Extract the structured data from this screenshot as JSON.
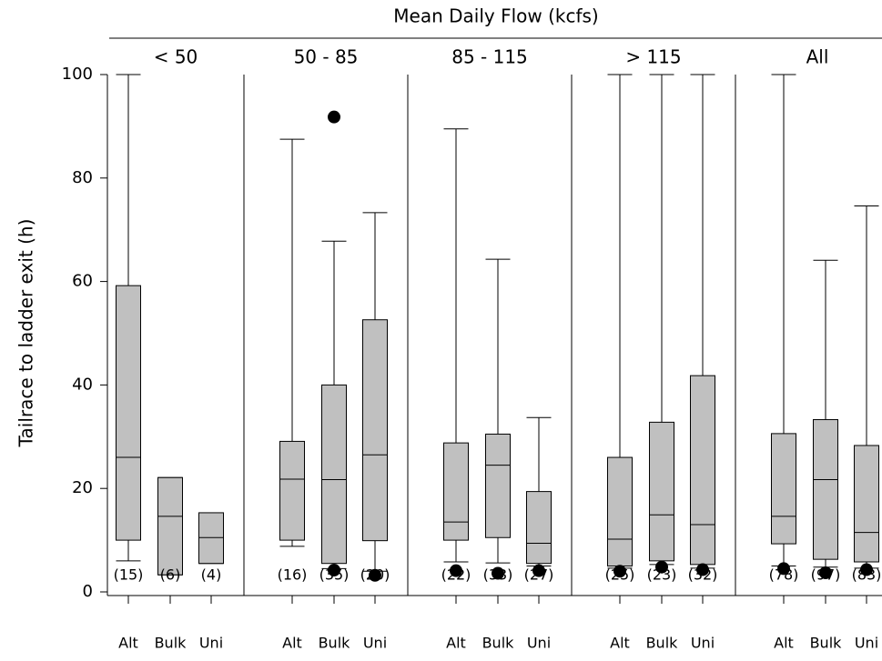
{
  "chart_data": {
    "type": "box",
    "title": "Mean Daily Flow (kcfs)",
    "y_label": "Tailrace to ladder exit (h)",
    "ylim": [
      0,
      100
    ],
    "yticks": [
      0,
      20,
      40,
      60,
      80,
      100
    ],
    "color": "#c0c0c0",
    "panels": [
      {
        "label": "< 50",
        "categories": [
          "Alt",
          "Bulk",
          "Uni"
        ],
        "boxes": [
          {
            "whislo": 6,
            "q1": 10,
            "med": 26,
            "q3": 59.2,
            "whishi": 100,
            "fliers": [],
            "count_label": "(15)"
          },
          {
            "whislo": 3.3,
            "q1": 3.3,
            "med": 14.6,
            "q3": 22.1,
            "whishi": 22.1,
            "fliers": [],
            "count_label": "(6)"
          },
          {
            "whislo": 5.5,
            "q1": 5.5,
            "med": 10.5,
            "q3": 15.3,
            "whishi": 15.3,
            "fliers": [],
            "count_label": "(4)"
          }
        ]
      },
      {
        "label": "50 - 85",
        "categories": [
          "Alt",
          "Bulk",
          "Uni"
        ],
        "boxes": [
          {
            "whislo": 8.8,
            "q1": 10,
            "med": 21.8,
            "q3": 29.1,
            "whishi": 87.5,
            "fliers": [],
            "count_label": "(16)"
          },
          {
            "whislo": 4.5,
            "q1": 5.5,
            "med": 21.7,
            "q3": 40,
            "whishi": 67.8,
            "fliers": [
              91.8,
              4.2
            ],
            "count_label": "(35)"
          },
          {
            "whislo": 4,
            "q1": 9.9,
            "med": 26.5,
            "q3": 52.6,
            "whishi": 73.3,
            "fliers": [
              3.2
            ],
            "count_label": "(20)"
          }
        ]
      },
      {
        "label": "85 - 115",
        "categories": [
          "Alt",
          "Bulk",
          "Uni"
        ],
        "boxes": [
          {
            "whislo": 5.8,
            "q1": 10,
            "med": 13.5,
            "q3": 28.8,
            "whishi": 89.5,
            "fliers": [
              4.1
            ],
            "count_label": "(22)"
          },
          {
            "whislo": 5.6,
            "q1": 10.5,
            "med": 24.5,
            "q3": 30.5,
            "whishi": 64.3,
            "fliers": [
              3.6
            ],
            "count_label": "(33)"
          },
          {
            "whislo": 5,
            "q1": 5.5,
            "med": 9.4,
            "q3": 19.4,
            "whishi": 33.7,
            "fliers": [
              4.1
            ],
            "count_label": "(27)"
          }
        ]
      },
      {
        "label": "> 115",
        "categories": [
          "Alt",
          "Bulk",
          "Uni"
        ],
        "boxes": [
          {
            "whislo": 4.6,
            "q1": 5,
            "med": 10.2,
            "q3": 26,
            "whishi": 100,
            "fliers": [
              4
            ],
            "count_label": "(25)"
          },
          {
            "whislo": 5.3,
            "q1": 6,
            "med": 14.9,
            "q3": 32.8,
            "whishi": 100,
            "fliers": [
              4.8
            ],
            "count_label": "(23)"
          },
          {
            "whislo": 4.6,
            "q1": 5.3,
            "med": 13,
            "q3": 41.8,
            "whishi": 100,
            "fliers": [
              4.3
            ],
            "count_label": "(32)"
          }
        ]
      },
      {
        "label": "All",
        "categories": [
          "Alt",
          "Bulk",
          "Uni"
        ],
        "boxes": [
          {
            "whislo": 5,
            "q1": 9.3,
            "med": 14.6,
            "q3": 30.6,
            "whishi": 100,
            "fliers": [
              4.5
            ],
            "count_label": "(78)"
          },
          {
            "whislo": 4.8,
            "q1": 6.3,
            "med": 21.7,
            "q3": 33.3,
            "whishi": 64.1,
            "fliers": [
              3.7
            ],
            "count_label": "(97)"
          },
          {
            "whislo": 4.6,
            "q1": 5.8,
            "med": 11.5,
            "q3": 28.3,
            "whishi": 74.6,
            "fliers": [
              4.3
            ],
            "count_label": "(83)"
          }
        ]
      }
    ]
  }
}
